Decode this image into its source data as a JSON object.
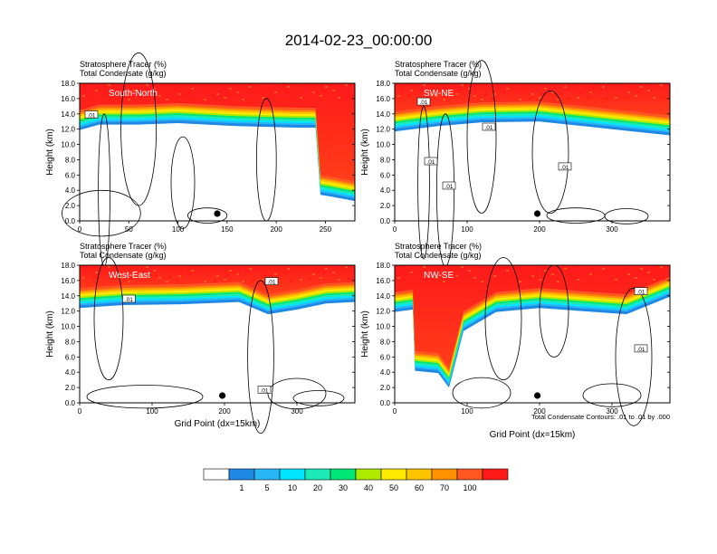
{
  "title": "2014-02-23_00:00:00",
  "subtitle_line1": "Stratosphere Tracer   (%)",
  "subtitle_line2": "Total Condensate   (g/kg)",
  "ylabel": "Height (km)",
  "xlabel": "Grid Point (dx=15km)",
  "contour_note": "Total Condensate Contours: .01 to .01 by .000",
  "colors": {
    "levels": [
      "#ffffff",
      "#1e88e5",
      "#29b6f6",
      "#00e5ff",
      "#1de9b6",
      "#00e676",
      "#aeea00",
      "#ffea00",
      "#ffc400",
      "#ff9100",
      "#ff5722",
      "#ff1a1a"
    ],
    "contour": "#000000"
  },
  "colorbar": {
    "labels": [
      "1",
      "5",
      "10",
      "20",
      "30",
      "40",
      "50",
      "60",
      "70",
      "100"
    ]
  },
  "chart_data": [
    {
      "type": "heatmap",
      "name": "South-North",
      "xlim": [
        0,
        280
      ],
      "ylim": [
        0,
        18
      ],
      "xticks": [
        0,
        50,
        100,
        150,
        200,
        250
      ],
      "yticks": [
        0.0,
        2.0,
        4.0,
        6.0,
        8.0,
        10.0,
        12.0,
        14.0,
        16.0,
        18.0
      ],
      "contour_labels": [
        ".01"
      ],
      "marker_x": 140,
      "tropopause": [
        [
          0,
          14.5
        ],
        [
          20,
          15.2
        ],
        [
          60,
          15.2
        ],
        [
          100,
          15.4
        ],
        [
          160,
          15.0
        ],
        [
          220,
          14.8
        ],
        [
          240,
          14.8
        ],
        [
          245,
          6.0
        ],
        [
          255,
          5.8
        ],
        [
          280,
          5.2
        ]
      ],
      "contour_label_positions": [
        [
          12,
          13.8
        ]
      ]
    },
    {
      "type": "heatmap",
      "name": "SW-NE",
      "xlim": [
        0,
        380
      ],
      "ylim": [
        0,
        18
      ],
      "xticks": [
        0,
        100,
        200,
        300
      ],
      "yticks": [
        0.0,
        2.0,
        4.0,
        6.0,
        8.0,
        10.0,
        12.0,
        14.0,
        16.0,
        18.0
      ],
      "contour_labels": [
        ".01"
      ],
      "marker_x": 197,
      "tropopause": [
        [
          0,
          14.3
        ],
        [
          60,
          15.0
        ],
        [
          120,
          15.5
        ],
        [
          200,
          15.6
        ],
        [
          260,
          15.0
        ],
        [
          300,
          14.6
        ],
        [
          340,
          14.2
        ],
        [
          380,
          13.8
        ]
      ],
      "contour_label_positions": [
        [
          40,
          15.5
        ],
        [
          130,
          12.2
        ],
        [
          235,
          7.0
        ],
        [
          50,
          7.7
        ],
        [
          75,
          4.5
        ]
      ]
    },
    {
      "type": "heatmap",
      "name": "West-East",
      "xlim": [
        0,
        380
      ],
      "ylim": [
        0,
        18
      ],
      "xticks": [
        0,
        100,
        200,
        300
      ],
      "yticks": [
        0.0,
        2.0,
        4.0,
        6.0,
        8.0,
        10.0,
        12.0,
        14.0,
        16.0,
        18.0
      ],
      "contour_labels": [
        ".01"
      ],
      "marker_x": 197,
      "tropopause": [
        [
          0,
          15.0
        ],
        [
          60,
          15.4
        ],
        [
          140,
          15.5
        ],
        [
          220,
          15.8
        ],
        [
          260,
          14.2
        ],
        [
          300,
          14.8
        ],
        [
          340,
          15.6
        ],
        [
          380,
          15.8
        ]
      ],
      "contour_label_positions": [
        [
          68,
          13.5
        ],
        [
          265,
          15.8
        ],
        [
          255,
          1.6
        ]
      ]
    },
    {
      "type": "heatmap",
      "name": "NW-SE",
      "xlim": [
        0,
        380
      ],
      "ylim": [
        0,
        18
      ],
      "xticks": [
        0,
        100,
        200,
        300
      ],
      "yticks": [
        0.0,
        2.0,
        4.0,
        6.0,
        8.0,
        10.0,
        12.0,
        14.0,
        16.0,
        18.0
      ],
      "contour_labels": [
        ".01"
      ],
      "marker_x": 197,
      "tropopause": [
        [
          0,
          14.5
        ],
        [
          25,
          14.8
        ],
        [
          28,
          6.8
        ],
        [
          60,
          6.5
        ],
        [
          75,
          4.6
        ],
        [
          95,
          12.0
        ],
        [
          140,
          14.5
        ],
        [
          200,
          15.0
        ],
        [
          260,
          14.6
        ],
        [
          320,
          14.2
        ],
        [
          380,
          16.5
        ]
      ],
      "contour_label_positions": [
        [
          340,
          14.5
        ],
        [
          340,
          7.0
        ]
      ]
    }
  ]
}
